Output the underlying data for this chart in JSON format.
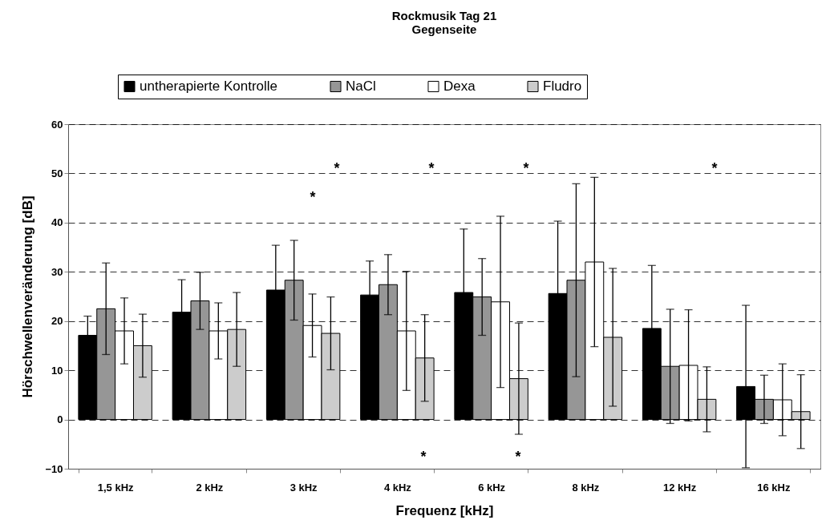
{
  "chart_data": {
    "type": "bar",
    "title": "Rockmusik Tag 21",
    "subtitle": "Gegenseite",
    "xlabel": "Frequenz [kHz]",
    "ylabel": "Hörschwellenveränderung [dB]",
    "categories": [
      "1,5 kHz",
      "2 kHz",
      "3 kHz",
      "4 kHz",
      "6 kHz",
      "8 kHz",
      "12 kHz",
      "16 kHz"
    ],
    "series": [
      {
        "name": "untherapierte Kontrolle",
        "color": "#000000",
        "values": [
          17.1,
          21.8,
          26.3,
          25.3,
          25.8,
          25.6,
          18.5,
          6.7
        ],
        "errors": [
          3.9,
          6.6,
          9.1,
          6.9,
          12.9,
          14.7,
          12.8,
          16.5
        ]
      },
      {
        "name": "NaCl",
        "color": "#969696",
        "values": [
          22.5,
          24.1,
          28.3,
          27.4,
          24.9,
          28.3,
          10.8,
          4.1
        ],
        "errors": [
          9.3,
          5.8,
          8.1,
          6.1,
          7.8,
          19.6,
          11.6,
          4.9
        ]
      },
      {
        "name": "Dexa",
        "color": "#ffffff",
        "values": [
          18,
          18,
          19.1,
          18,
          23.9,
          32,
          11,
          4
        ],
        "errors": [
          6.7,
          5.7,
          6.4,
          12.1,
          17.4,
          17.2,
          11.3,
          7.3
        ]
      },
      {
        "name": "Fludro",
        "color": "#cccccc",
        "values": [
          15,
          18.3,
          17.5,
          12.5,
          8.3,
          16.7,
          4.1,
          1.6
        ],
        "errors": [
          6.4,
          7.5,
          7.4,
          8.8,
          11.3,
          14,
          6.6,
          7.5
        ]
      }
    ],
    "ylim": [
      -10,
      60
    ],
    "yticks": [
      -10,
      0,
      10,
      20,
      30,
      40,
      50,
      60
    ],
    "grid": "y",
    "legend": "top",
    "annotations": [
      "*",
      "*",
      "*",
      "*",
      "*",
      "*",
      "*"
    ]
  }
}
